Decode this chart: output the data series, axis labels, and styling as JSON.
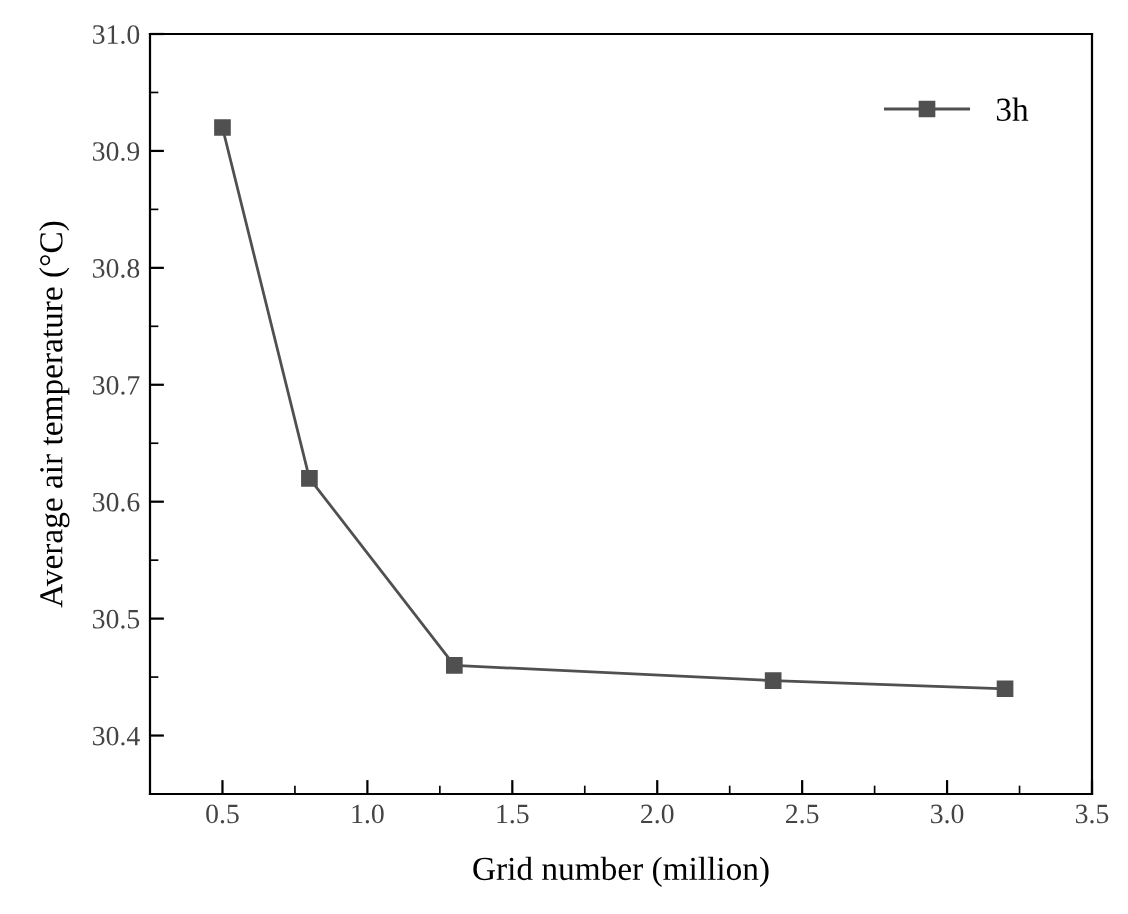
{
  "chart_data": {
    "type": "line",
    "xlabel": "Grid number (million)",
    "ylabel": "Average air temperature (°C)",
    "x": [
      0.5,
      0.8,
      1.3,
      2.4,
      3.2
    ],
    "series": [
      {
        "name": "3h",
        "color": "#505050",
        "values": [
          30.92,
          30.62,
          30.46,
          30.447,
          30.44
        ]
      }
    ],
    "xlim": [
      0.25,
      3.5
    ],
    "xticks": [
      {
        "value": 0.5,
        "label": "0.5"
      },
      {
        "value": 1.0,
        "label": "1.0"
      },
      {
        "value": 1.5,
        "label": "1.5"
      },
      {
        "value": 2.0,
        "label": "2.0"
      },
      {
        "value": 2.5,
        "label": "2.5"
      },
      {
        "value": 3.0,
        "label": "3.0"
      },
      {
        "value": 3.5,
        "label": "3.5"
      }
    ],
    "ylim": [
      30.35,
      31.0
    ],
    "yticks": [
      {
        "value": 30.4,
        "label": "30.4"
      },
      {
        "value": 30.5,
        "label": "30.5"
      },
      {
        "value": 30.6,
        "label": "30.6"
      },
      {
        "value": 30.7,
        "label": "30.7"
      },
      {
        "value": 30.8,
        "label": "30.8"
      },
      {
        "value": 30.9,
        "label": "30.9"
      },
      {
        "value": 31.0,
        "label": "31.0"
      }
    ],
    "marker": "square",
    "line_style": "solid",
    "legend": "top right",
    "grid": false
  }
}
